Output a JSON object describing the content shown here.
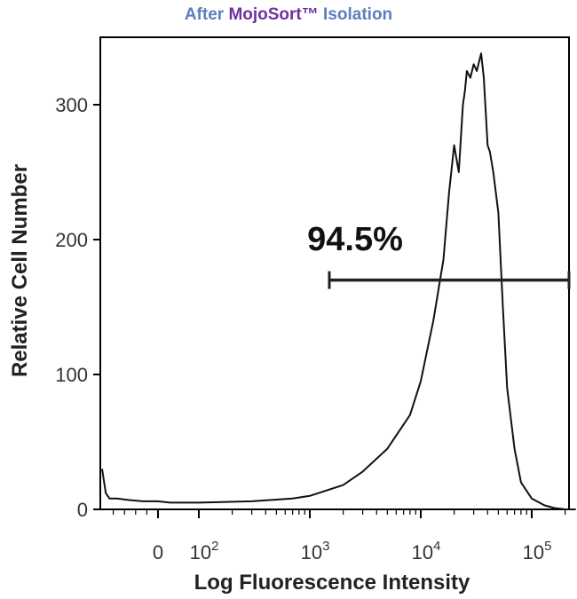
{
  "title": {
    "part1": "After ",
    "part2": "MojoSort™",
    "part3": " Isolation",
    "color1": "#5b7fbf",
    "color2": "#7030a0",
    "color3": "#5b7fbf"
  },
  "chart_data": {
    "type": "line",
    "title": "After MojoSort™ Isolation",
    "xlabel": "Log Fluorescence Intensity",
    "ylabel": "Relative Cell Number",
    "xscale": "biexponential (log)",
    "xlim": [
      -150,
      250000
    ],
    "ylim": [
      0,
      350
    ],
    "xticks": [
      {
        "value": 0,
        "label": "0",
        "exp": ""
      },
      {
        "value": 100,
        "label": "10",
        "exp": "2"
      },
      {
        "value": 1000,
        "label": "10",
        "exp": "3"
      },
      {
        "value": 10000,
        "label": "10",
        "exp": "4"
      },
      {
        "value": 100000,
        "label": "10",
        "exp": "5"
      }
    ],
    "yticks": [
      0,
      100,
      200,
      300
    ],
    "grid": false,
    "gate": {
      "label": "94.5%",
      "from": 1500,
      "to": 250000,
      "y": 170
    },
    "series": [
      {
        "x": [
          -150,
          -140,
          -130,
          -110,
          -80,
          -40,
          0,
          30,
          100,
          300,
          700,
          1000,
          2000,
          3000,
          5000,
          8000,
          10000,
          13000,
          16000,
          18000,
          20000,
          22000,
          24000,
          25000,
          26000,
          28000,
          30000,
          32000,
          35000,
          37000,
          40000,
          42000,
          45000,
          50000,
          55000,
          60000,
          70000,
          80000,
          100000,
          130000,
          160000,
          200000,
          250000
        ],
        "y": [
          30,
          12,
          8,
          8,
          7,
          6,
          6,
          5,
          5,
          6,
          8,
          10,
          18,
          28,
          45,
          70,
          95,
          140,
          185,
          235,
          270,
          250,
          300,
          310,
          325,
          320,
          330,
          325,
          338,
          320,
          270,
          265,
          250,
          220,
          150,
          90,
          45,
          20,
          8,
          3,
          1,
          0,
          0
        ]
      }
    ]
  }
}
